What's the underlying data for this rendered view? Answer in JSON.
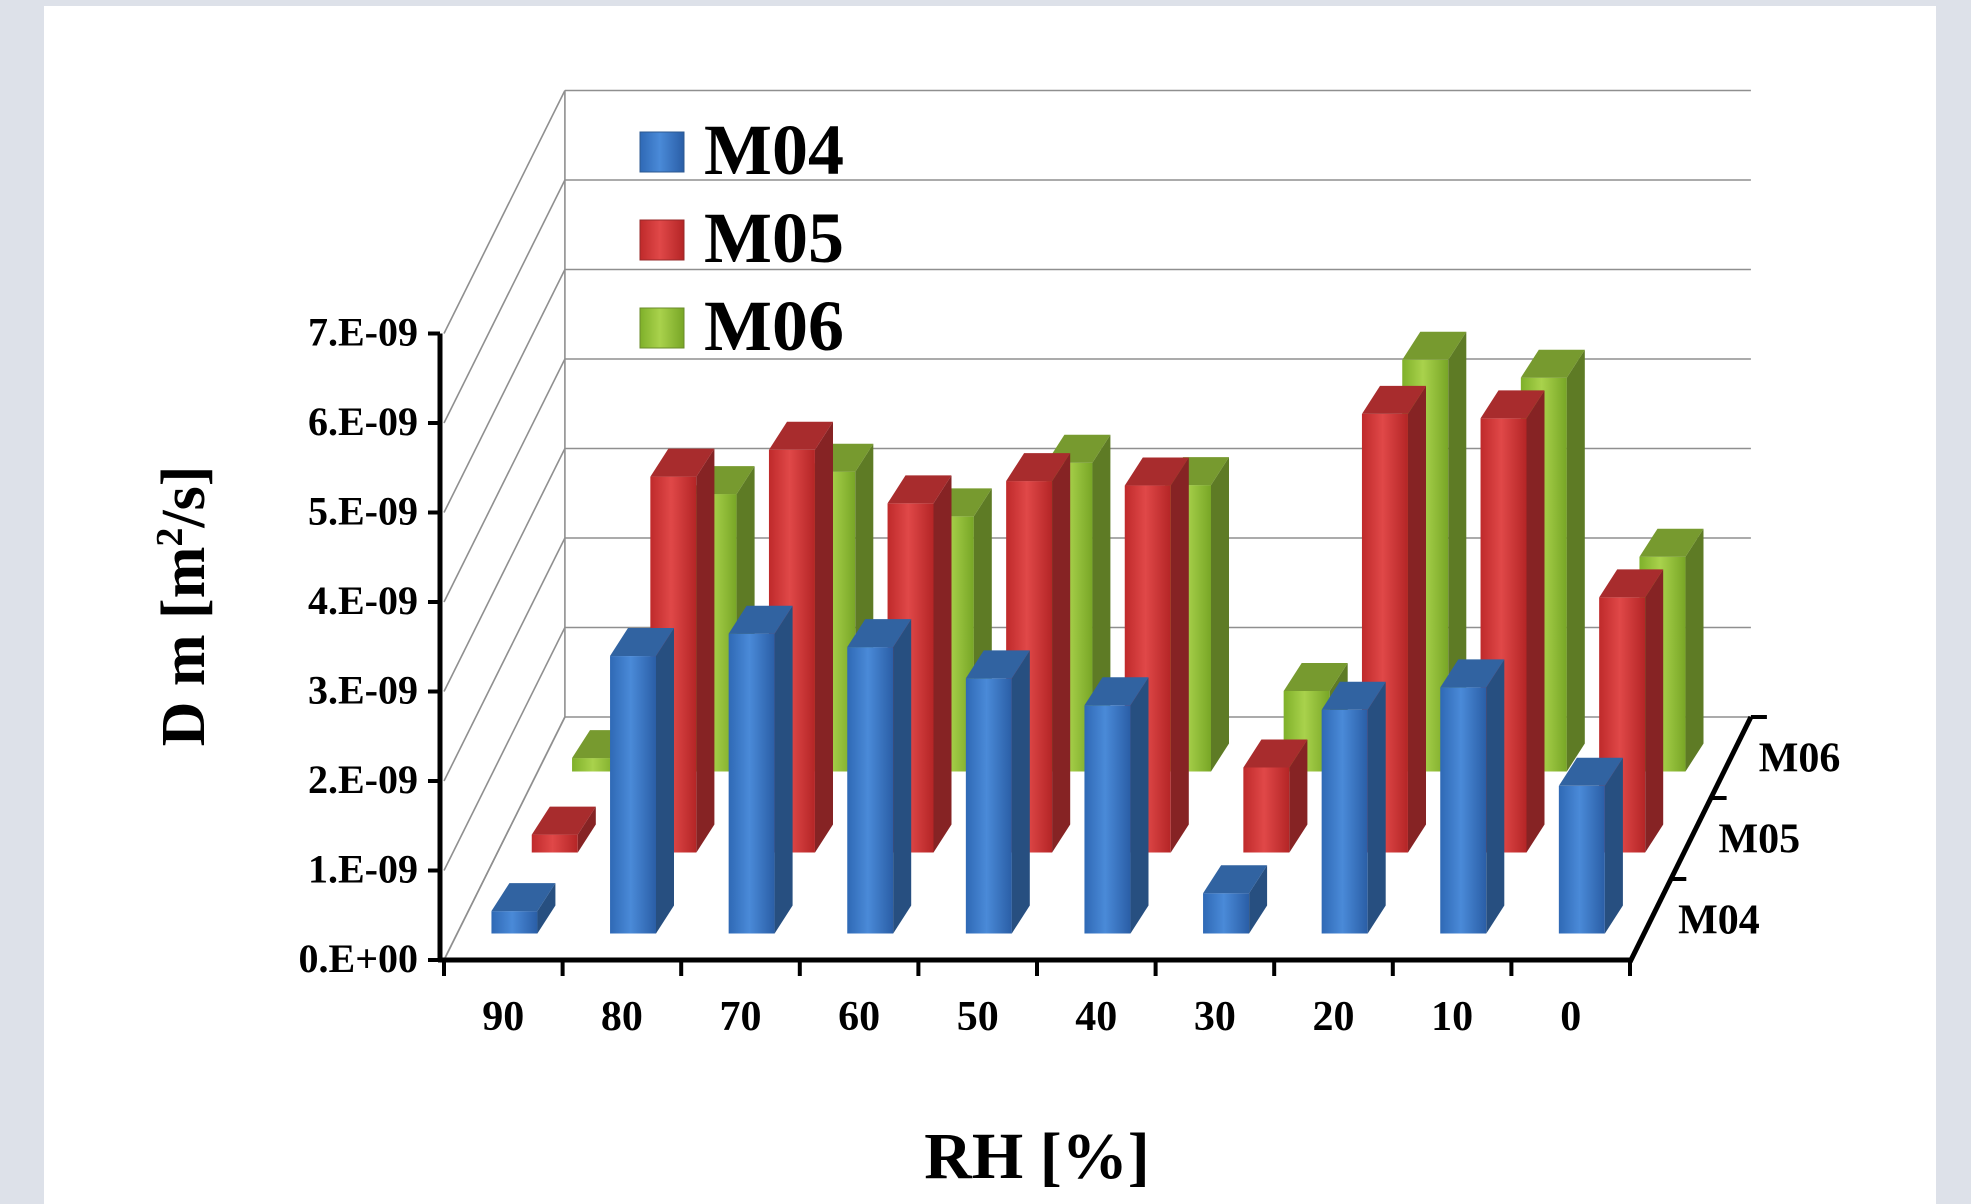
{
  "colors": {
    "page_background": "#dde1e9",
    "panel_background": "#ffffff",
    "M04": "#3f7fcf",
    "M05": "#d8393a",
    "M06": "#98c63c"
  },
  "chart_data": {
    "type": "bar",
    "subtype": "3d-clustered-column",
    "title": "",
    "xlabel": "RH [%]",
    "ylabel_main": "D m [m",
    "ylabel_sup": "2",
    "ylabel_tail": "/s]",
    "categories": [
      "90",
      "80",
      "70",
      "60",
      "50",
      "40",
      "30",
      "20",
      "10",
      "0"
    ],
    "ylim": [
      0,
      7e-09
    ],
    "yticks": [
      "0.E+00",
      "1.E-09",
      "2.E-09",
      "3.E-09",
      "4.E-09",
      "5.E-09",
      "6.E-09",
      "7.E-09"
    ],
    "depth_labels": [
      "M04",
      "M05",
      "M06"
    ],
    "legend": {
      "position": "top-left",
      "entries": [
        "M04",
        "M05",
        "M06"
      ]
    },
    "grid": true,
    "series": [
      {
        "name": "M04",
        "color": "#3f7fcf",
        "values": [
          2.5e-10,
          3.1e-09,
          3.35e-09,
          3.2e-09,
          2.85e-09,
          2.55e-09,
          4.5e-10,
          2.5e-09,
          2.75e-09,
          1.65e-09
        ]
      },
      {
        "name": "M05",
        "color": "#d8393a",
        "values": [
          2e-10,
          4.2e-09,
          4.5e-09,
          3.9e-09,
          4.15e-09,
          4.1e-09,
          9.5e-10,
          4.9e-09,
          4.85e-09,
          2.85e-09
        ]
      },
      {
        "name": "M06",
        "color": "#98c63c",
        "values": [
          1.5e-10,
          3.1e-09,
          3.35e-09,
          2.85e-09,
          3.45e-09,
          3.2e-09,
          9e-10,
          4.6e-09,
          4.4e-09,
          2.4e-09
        ]
      }
    ]
  }
}
